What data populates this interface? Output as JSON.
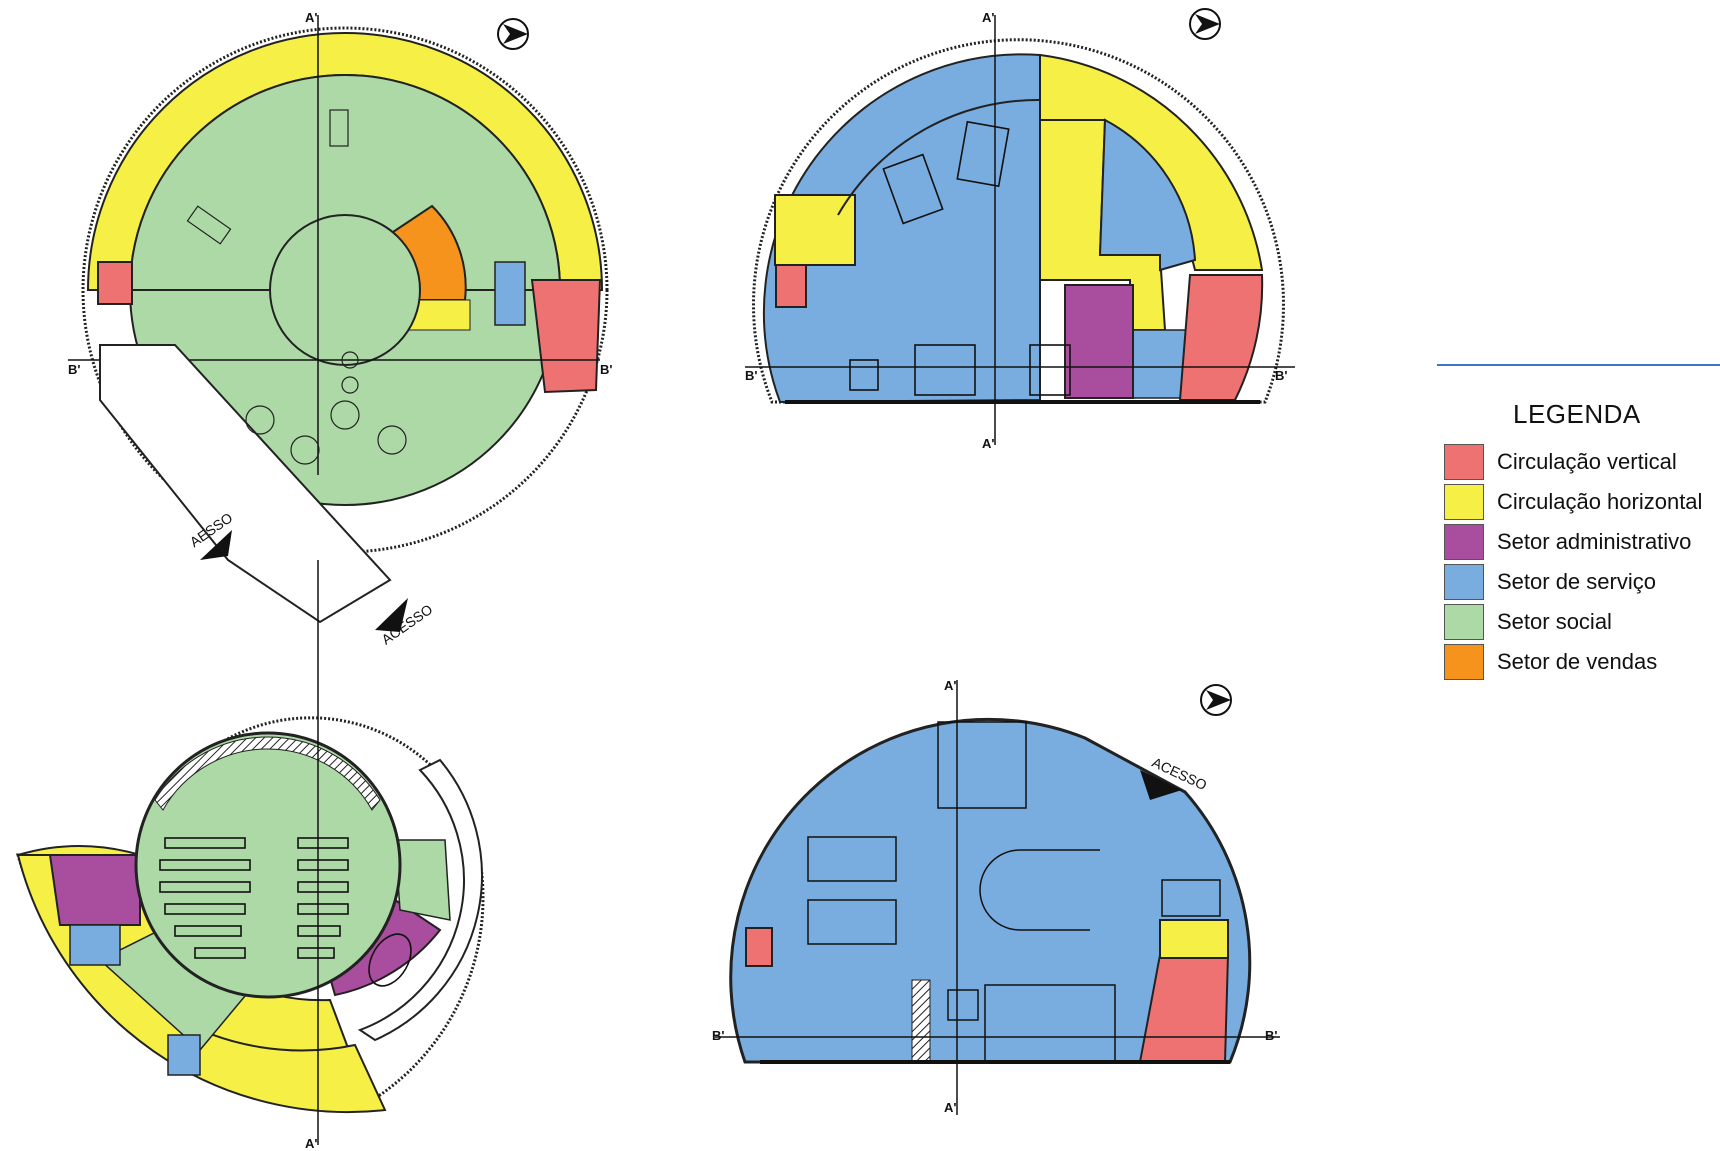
{
  "colors": {
    "vertical": "#ee7272",
    "horizontal": "#f5ef46",
    "admin": "#a94d9e",
    "service": "#79ade0",
    "social": "#acd9a6",
    "sales": "#f6931d"
  },
  "legend": {
    "title": "LEGENDA",
    "items": [
      {
        "label": "Circulação vertical",
        "color": "#ee7272"
      },
      {
        "label": "Circulação horizontal",
        "color": "#f5ef46"
      },
      {
        "label": "Setor administrativo",
        "color": "#a94d9e"
      },
      {
        "label": "Setor de serviço",
        "color": "#79ade0"
      },
      {
        "label": "Setor social",
        "color": "#acd9a6"
      },
      {
        "label": "Setor de vendas",
        "color": "#f6931d"
      }
    ]
  },
  "plans": {
    "access_labels": [
      "AESSO",
      "ACESSO",
      "ACESSO"
    ],
    "axis_a": "A'",
    "axis_b": "B'",
    "north_icon": "north-arrow-icon"
  }
}
